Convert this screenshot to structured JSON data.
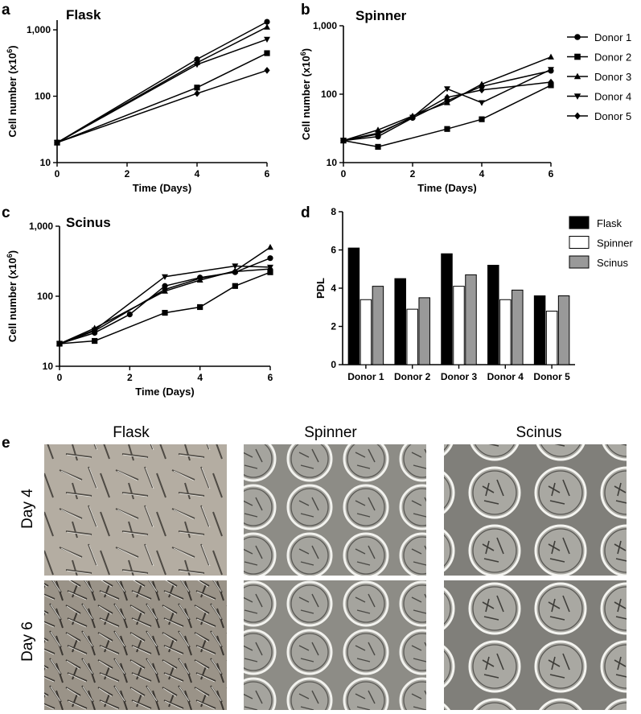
{
  "chart_data": [
    {
      "panel": "a",
      "type": "line",
      "title": "Flask",
      "xlabel": "Time (Days)",
      "ylabel_main": "Cell number (x10",
      "ylabel_sup": "6",
      "ylabel_end": ")",
      "yscale": "log",
      "xlim": [
        0,
        6
      ],
      "ylim": [
        10,
        1400
      ],
      "xticks": [
        0,
        2,
        4,
        6
      ],
      "xtick_labels": [
        "0",
        "2",
        "4",
        "6"
      ],
      "yticks": [
        10,
        100,
        1000
      ],
      "ytick_labels": [
        "10",
        "100",
        "1,000"
      ],
      "series": [
        {
          "name": "Donor 1",
          "marker": "circle",
          "x": [
            0,
            4,
            6
          ],
          "y": [
            20,
            360,
            1320
          ]
        },
        {
          "name": "Donor 2",
          "marker": "square",
          "x": [
            0,
            4,
            6
          ],
          "y": [
            20,
            135,
            445
          ]
        },
        {
          "name": "Donor 3",
          "marker": "triangle-up",
          "x": [
            0,
            4,
            6
          ],
          "y": [
            20,
            320,
            1100
          ]
        },
        {
          "name": "Donor 4",
          "marker": "triangle-down",
          "x": [
            0,
            4,
            6
          ],
          "y": [
            20,
            300,
            720
          ]
        },
        {
          "name": "Donor 5",
          "marker": "diamond",
          "x": [
            0,
            4,
            6
          ],
          "y": [
            20,
            110,
            245
          ]
        }
      ]
    },
    {
      "panel": "b",
      "type": "line",
      "title": "Spinner",
      "xlabel": "Time (Days)",
      "ylabel_main": "Cell number (x10",
      "ylabel_sup": "6",
      "ylabel_end": ")",
      "yscale": "log",
      "xlim": [
        0,
        6
      ],
      "ylim": [
        10,
        1000
      ],
      "xticks": [
        0,
        2,
        4,
        6
      ],
      "xtick_labels": [
        "0",
        "2",
        "4",
        "6"
      ],
      "yticks": [
        10,
        100,
        1000
      ],
      "ytick_labels": [
        "10",
        "100",
        "1,000"
      ],
      "legend": {
        "placement": "right",
        "entries": [
          "Donor 1",
          "Donor 2",
          "Donor 3",
          "Donor 4",
          "Donor 5"
        ]
      },
      "series": [
        {
          "name": "Donor 1",
          "marker": "circle",
          "x": [
            0,
            1,
            2,
            3,
            4,
            6
          ],
          "y": [
            21,
            24,
            45,
            80,
            130,
            220
          ]
        },
        {
          "name": "Donor 2",
          "marker": "square",
          "x": [
            0,
            1,
            3,
            4,
            6
          ],
          "y": [
            21,
            17,
            31,
            43,
            135
          ]
        },
        {
          "name": "Donor 3",
          "marker": "triangle-up",
          "x": [
            0,
            1,
            2,
            3,
            4,
            6
          ],
          "y": [
            21,
            30,
            48,
            75,
            140,
            350
          ]
        },
        {
          "name": "Donor 4",
          "marker": "triangle-down",
          "x": [
            0,
            1,
            2,
            3,
            4,
            6
          ],
          "y": [
            21,
            27,
            46,
            120,
            75,
            230
          ]
        },
        {
          "name": "Donor 5",
          "marker": "diamond",
          "x": [
            0,
            1,
            2,
            3,
            4,
            6
          ],
          "y": [
            21,
            26,
            47,
            90,
            115,
            150
          ]
        }
      ]
    },
    {
      "panel": "c",
      "type": "line",
      "title": "Scinus",
      "xlabel": "Time (Days)",
      "ylabel_main": "Cell number (x10",
      "ylabel_sup": "6",
      "ylabel_end": ")",
      "yscale": "log",
      "xlim": [
        0,
        6
      ],
      "ylim": [
        10,
        1000
      ],
      "xticks": [
        0,
        2,
        4,
        6
      ],
      "xtick_labels": [
        "0",
        "2",
        "4",
        "6"
      ],
      "yticks": [
        10,
        100,
        1000
      ],
      "ytick_labels": [
        "10",
        "100",
        "1,000"
      ],
      "series": [
        {
          "name": "Donor 1",
          "marker": "circle",
          "x": [
            0,
            1,
            2,
            3,
            4,
            5,
            6
          ],
          "y": [
            21,
            30,
            55,
            140,
            185,
            220,
            350
          ]
        },
        {
          "name": "Donor 2",
          "marker": "square",
          "x": [
            0,
            1,
            3,
            4,
            5,
            6
          ],
          "y": [
            21,
            23,
            58,
            70,
            140,
            220
          ]
        },
        {
          "name": "Donor 3",
          "marker": "triangle-up",
          "x": [
            0,
            1,
            3,
            4,
            5,
            6
          ],
          "y": [
            21,
            35,
            118,
            170,
            230,
            500
          ]
        },
        {
          "name": "Donor 4",
          "marker": "triangle-down",
          "x": [
            0,
            1,
            3,
            5,
            6
          ],
          "y": [
            21,
            33,
            190,
            270,
            260
          ]
        },
        {
          "name": "Donor 5",
          "marker": "diamond",
          "x": [
            0,
            1,
            3,
            4,
            5,
            6
          ],
          "y": [
            21,
            32,
            125,
            180,
            225,
            245
          ]
        }
      ]
    },
    {
      "panel": "d",
      "type": "bar",
      "ylabel": "PDL",
      "ylim": [
        0,
        8
      ],
      "yticks": [
        0,
        2,
        4,
        6,
        8
      ],
      "ytick_labels": [
        "0",
        "2",
        "4",
        "6",
        "8"
      ],
      "categories": [
        "Donor 1",
        "Donor 2",
        "Donor 3",
        "Donor 4",
        "Donor 5"
      ],
      "legend": {
        "placement": "right",
        "entries": [
          "Flask",
          "Spinner",
          "Scinus"
        ]
      },
      "series": [
        {
          "name": "Flask",
          "color": "#000000",
          "values": [
            6.1,
            4.5,
            5.8,
            5.2,
            3.6
          ]
        },
        {
          "name": "Spinner",
          "color": "#ffffff",
          "values": [
            3.4,
            2.9,
            4.1,
            3.4,
            2.8
          ]
        },
        {
          "name": "Scinus",
          "color": "#999999",
          "values": [
            4.1,
            3.5,
            4.7,
            3.9,
            3.6
          ]
        }
      ]
    }
  ],
  "panel_e": {
    "letter": "e",
    "columns": [
      "Flask",
      "Spinner",
      "Scinus"
    ],
    "rows": [
      "Day 4",
      "Day 6"
    ]
  }
}
